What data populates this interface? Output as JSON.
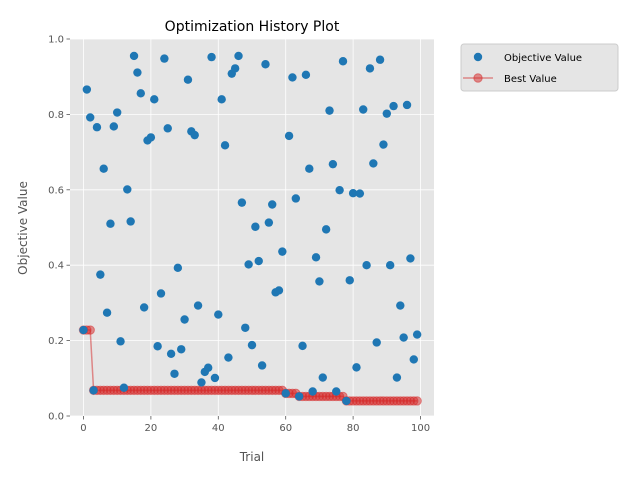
{
  "chart_data": {
    "type": "scatter",
    "title": "Optimization History Plot",
    "xlabel": "Trial",
    "ylabel": "Objective Value",
    "xlim": [
      -4,
      104
    ],
    "ylim": [
      0.0,
      1.0
    ],
    "xticks": [
      0,
      20,
      40,
      60,
      80,
      100
    ],
    "yticks": [
      0.0,
      0.2,
      0.4,
      0.6,
      0.8,
      1.0
    ],
    "xtick_labels": [
      "0",
      "20",
      "40",
      "60",
      "80",
      "100"
    ],
    "ytick_labels": [
      "0.0",
      "0.2",
      "0.4",
      "0.6",
      "0.8",
      "1.0"
    ],
    "grid": true,
    "legend_position": "outside top-right",
    "series": [
      {
        "name": "Objective Value",
        "kind": "scatter",
        "color": "#1f77b4",
        "x": [
          0,
          1,
          2,
          3,
          4,
          5,
          6,
          7,
          8,
          9,
          10,
          11,
          12,
          13,
          14,
          15,
          16,
          17,
          18,
          19,
          20,
          21,
          22,
          23,
          24,
          25,
          26,
          27,
          28,
          29,
          30,
          31,
          32,
          33,
          34,
          35,
          36,
          37,
          38,
          39,
          40,
          41,
          42,
          43,
          44,
          45,
          46,
          47,
          48,
          49,
          50,
          51,
          52,
          53,
          54,
          55,
          56,
          57,
          58,
          59,
          60,
          61,
          62,
          63,
          64,
          65,
          66,
          67,
          68,
          69,
          70,
          71,
          72,
          73,
          74,
          75,
          76,
          77,
          78,
          79,
          80,
          81,
          82,
          83,
          84,
          85,
          86,
          87,
          88,
          89,
          90,
          91,
          92,
          93,
          94,
          95,
          96,
          97,
          98,
          99
        ],
        "values": [
          0.228,
          0.866,
          0.792,
          0.068,
          0.766,
          0.375,
          0.656,
          0.274,
          0.51,
          0.768,
          0.805,
          0.198,
          0.075,
          0.601,
          0.516,
          0.955,
          0.911,
          0.856,
          0.288,
          0.731,
          0.739,
          0.84,
          0.185,
          0.325,
          0.948,
          0.763,
          0.165,
          0.112,
          0.393,
          0.177,
          0.256,
          0.892,
          0.755,
          0.745,
          0.293,
          0.089,
          0.117,
          0.128,
          0.952,
          0.101,
          0.269,
          0.84,
          0.718,
          0.155,
          0.908,
          0.922,
          0.955,
          0.566,
          0.234,
          0.402,
          0.188,
          0.502,
          0.411,
          0.134,
          0.933,
          0.513,
          0.561,
          0.328,
          0.333,
          0.436,
          0.06,
          0.743,
          0.898,
          0.577,
          0.052,
          0.186,
          0.905,
          0.656,
          0.065,
          0.421,
          0.357,
          0.102,
          0.495,
          0.81,
          0.668,
          0.065,
          0.599,
          0.941,
          0.04,
          0.36,
          0.591,
          0.129,
          0.59,
          0.813,
          0.4,
          0.922,
          0.67,
          0.195,
          0.945,
          0.72,
          0.802,
          0.4,
          0.822,
          0.102,
          0.293,
          0.208,
          0.825,
          0.418,
          0.15,
          0.216
        ]
      },
      {
        "name": "Best Value",
        "kind": "step-line",
        "color": "#d62728",
        "x": [
          0,
          1,
          2,
          3,
          4,
          5,
          6,
          7,
          8,
          9,
          10,
          11,
          12,
          13,
          14,
          15,
          16,
          17,
          18,
          19,
          20,
          21,
          22,
          23,
          24,
          25,
          26,
          27,
          28,
          29,
          30,
          31,
          32,
          33,
          34,
          35,
          36,
          37,
          38,
          39,
          40,
          41,
          42,
          43,
          44,
          45,
          46,
          47,
          48,
          49,
          50,
          51,
          52,
          53,
          54,
          55,
          56,
          57,
          58,
          59,
          60,
          61,
          62,
          63,
          64,
          65,
          66,
          67,
          68,
          69,
          70,
          71,
          72,
          73,
          74,
          75,
          76,
          77,
          78,
          79,
          80,
          81,
          82,
          83,
          84,
          85,
          86,
          87,
          88,
          89,
          90,
          91,
          92,
          93,
          94,
          95,
          96,
          97,
          98,
          99
        ],
        "values": [
          0.228,
          0.228,
          0.228,
          0.068,
          0.068,
          0.068,
          0.068,
          0.068,
          0.068,
          0.068,
          0.068,
          0.068,
          0.068,
          0.068,
          0.068,
          0.068,
          0.068,
          0.068,
          0.068,
          0.068,
          0.068,
          0.068,
          0.068,
          0.068,
          0.068,
          0.068,
          0.068,
          0.068,
          0.068,
          0.068,
          0.068,
          0.068,
          0.068,
          0.068,
          0.068,
          0.068,
          0.068,
          0.068,
          0.068,
          0.068,
          0.068,
          0.068,
          0.068,
          0.068,
          0.068,
          0.068,
          0.068,
          0.068,
          0.068,
          0.068,
          0.068,
          0.068,
          0.068,
          0.068,
          0.068,
          0.068,
          0.068,
          0.068,
          0.068,
          0.068,
          0.06,
          0.06,
          0.06,
          0.06,
          0.052,
          0.052,
          0.052,
          0.052,
          0.052,
          0.052,
          0.052,
          0.052,
          0.052,
          0.052,
          0.052,
          0.052,
          0.052,
          0.052,
          0.04,
          0.04,
          0.04,
          0.04,
          0.04,
          0.04,
          0.04,
          0.04,
          0.04,
          0.04,
          0.04,
          0.04,
          0.04,
          0.04,
          0.04,
          0.04,
          0.04,
          0.04,
          0.04,
          0.04,
          0.04,
          0.04
        ]
      }
    ]
  }
}
